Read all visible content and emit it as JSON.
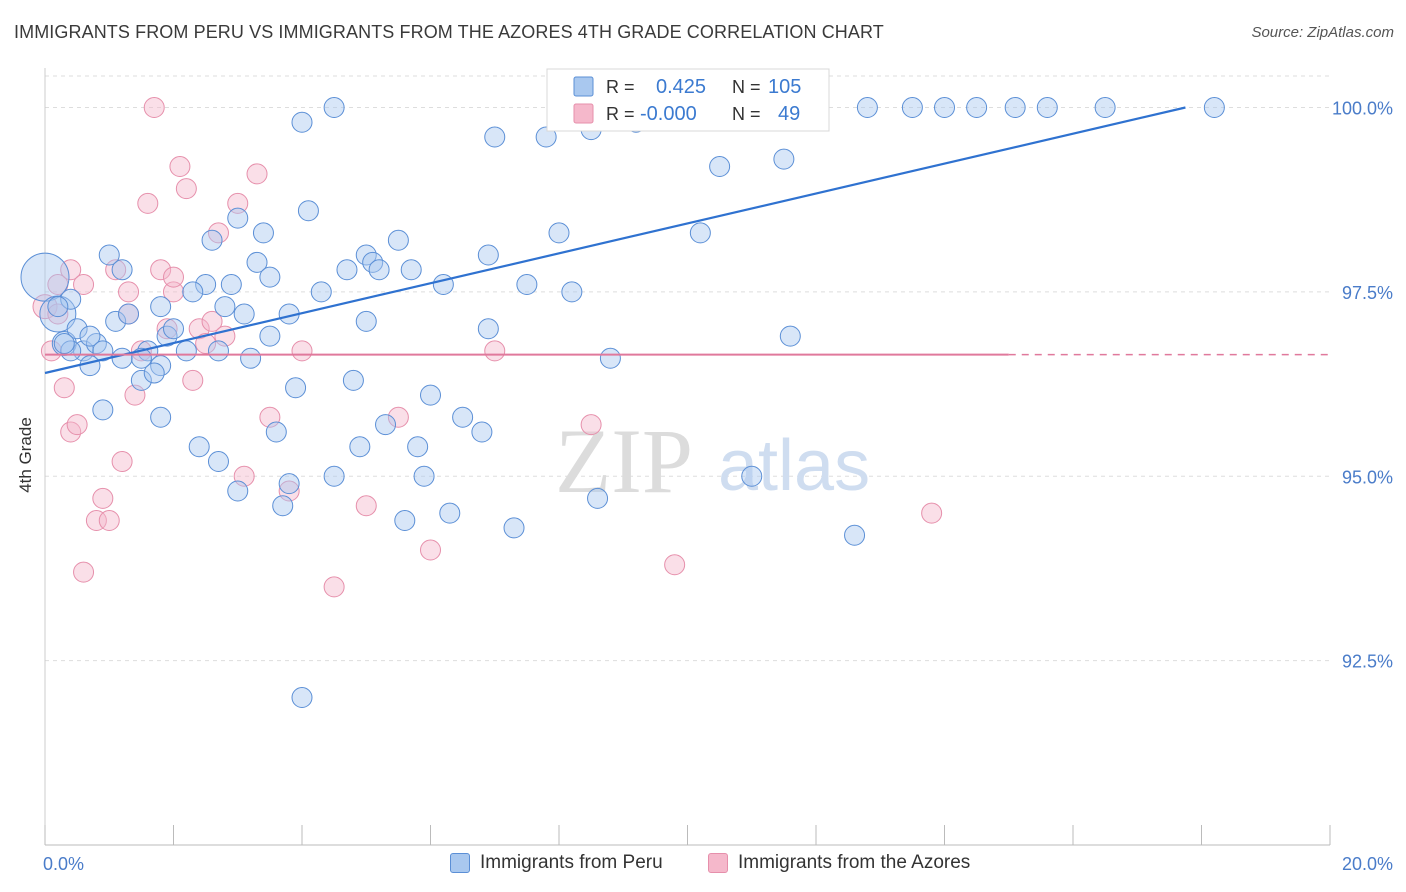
{
  "header": {
    "title": "IMMIGRANTS FROM PERU VS IMMIGRANTS FROM THE AZORES 4TH GRADE CORRELATION CHART",
    "source": "Source: ZipAtlas.com"
  },
  "watermark": {
    "zip": "ZIP",
    "atlas": "atlas"
  },
  "legend_stats": {
    "r_label": "R =",
    "n_label": "N =",
    "series": [
      {
        "r": "0.425",
        "n": "105"
      },
      {
        "r": "-0.000",
        "n": "49"
      }
    ]
  },
  "colors": {
    "peru_fill": "#a9c8ef",
    "peru_stroke": "#5b8fd6",
    "peru_line": "#2f72d0",
    "azores_fill": "#f5b8cb",
    "azores_stroke": "#e68fab",
    "azores_line": "#e0799c",
    "axis_label": "#4a7cc9",
    "grid": "#dddddd"
  },
  "chart_data": {
    "type": "scatter",
    "title": "IMMIGRANTS FROM PERU VS IMMIGRANTS FROM THE AZORES 4TH GRADE CORRELATION CHART",
    "xlabel": "",
    "ylabel": "4th Grade",
    "xlim": [
      0,
      20
    ],
    "ylim": [
      90.0,
      100.4
    ],
    "x_tick_labels": [
      "0.0%",
      "20.0%"
    ],
    "y_ticks": [
      92.5,
      95.0,
      97.5,
      100.0
    ],
    "y_tick_labels": [
      "92.5%",
      "95.0%",
      "97.5%",
      "100.0%"
    ],
    "legend_position": "top-center",
    "grid": true,
    "series": [
      {
        "name": "Immigrants from Peru",
        "trend": {
          "x": [
            0.0,
            17.75
          ],
          "y": [
            96.4,
            100.0
          ]
        },
        "points": [
          [
            0.0,
            97.7,
            24
          ],
          [
            0.2,
            97.2,
            18
          ],
          [
            0.3,
            96.8,
            12
          ],
          [
            0.4,
            97.4,
            10
          ],
          [
            0.5,
            97.0,
            10
          ],
          [
            0.6,
            96.7,
            10
          ],
          [
            0.7,
            96.5,
            10
          ],
          [
            0.8,
            96.8,
            10
          ],
          [
            0.9,
            95.9,
            10
          ],
          [
            1.0,
            98.0,
            10
          ],
          [
            1.1,
            97.1,
            10
          ],
          [
            1.2,
            97.8,
            10
          ],
          [
            1.3,
            97.2,
            10
          ],
          [
            1.5,
            96.3,
            10
          ],
          [
            1.6,
            96.7,
            10
          ],
          [
            1.8,
            97.3,
            10
          ],
          [
            1.8,
            96.5,
            10
          ],
          [
            1.8,
            95.8,
            10
          ],
          [
            1.9,
            96.9,
            10
          ],
          [
            2.0,
            97.0,
            10
          ],
          [
            2.2,
            96.7,
            10
          ],
          [
            2.4,
            95.4,
            10
          ],
          [
            2.5,
            97.6,
            10
          ],
          [
            2.6,
            98.2,
            10
          ],
          [
            2.7,
            95.2,
            10
          ],
          [
            2.8,
            97.3,
            10
          ],
          [
            2.9,
            97.6,
            10
          ],
          [
            3.0,
            98.5,
            10
          ],
          [
            3.0,
            94.8,
            10
          ],
          [
            3.1,
            97.2,
            10
          ],
          [
            3.2,
            96.6,
            10
          ],
          [
            3.3,
            97.9,
            10
          ],
          [
            3.4,
            98.3,
            10
          ],
          [
            3.5,
            97.7,
            10
          ],
          [
            3.5,
            96.9,
            10
          ],
          [
            3.6,
            95.6,
            10
          ],
          [
            3.7,
            94.6,
            10
          ],
          [
            3.8,
            97.2,
            10
          ],
          [
            3.9,
            96.2,
            10
          ],
          [
            4.0,
            99.8,
            10
          ],
          [
            4.1,
            98.6,
            10
          ],
          [
            4.3,
            97.5,
            10
          ],
          [
            4.5,
            100.0,
            10
          ],
          [
            4.5,
            95.0,
            10
          ],
          [
            4.7,
            97.8,
            10
          ],
          [
            4.8,
            96.3,
            10
          ],
          [
            4.9,
            95.4,
            10
          ],
          [
            5.0,
            98.0,
            10
          ],
          [
            5.0,
            97.1,
            10
          ],
          [
            5.1,
            97.9,
            10
          ],
          [
            5.2,
            97.8,
            10
          ],
          [
            5.3,
            95.7,
            10
          ],
          [
            5.5,
            98.2,
            10
          ],
          [
            5.6,
            94.4,
            10
          ],
          [
            5.7,
            97.8,
            10
          ],
          [
            5.8,
            95.4,
            10
          ],
          [
            5.9,
            95.0,
            10
          ],
          [
            6.0,
            96.1,
            10
          ],
          [
            6.2,
            97.6,
            10
          ],
          [
            6.3,
            94.5,
            10
          ],
          [
            6.5,
            95.8,
            10
          ],
          [
            6.8,
            95.6,
            10
          ],
          [
            6.9,
            98.0,
            10
          ],
          [
            7.0,
            99.6,
            10
          ],
          [
            7.3,
            94.3,
            10
          ],
          [
            7.5,
            97.6,
            10
          ],
          [
            7.8,
            99.6,
            10
          ],
          [
            8.0,
            98.3,
            10
          ],
          [
            8.2,
            97.5,
            10
          ],
          [
            8.5,
            99.7,
            10
          ],
          [
            8.6,
            100.0,
            10
          ],
          [
            8.6,
            94.7,
            10
          ],
          [
            8.8,
            96.6,
            10
          ],
          [
            9.2,
            99.8,
            10
          ],
          [
            9.5,
            100.0,
            10
          ],
          [
            9.8,
            100.0,
            10
          ],
          [
            10.0,
            100.0,
            10
          ],
          [
            10.2,
            98.3,
            10
          ],
          [
            10.5,
            99.2,
            10
          ],
          [
            11.0,
            95.0,
            10
          ],
          [
            11.5,
            99.3,
            10
          ],
          [
            11.6,
            96.9,
            10
          ],
          [
            12.0,
            100.0,
            10
          ],
          [
            12.6,
            94.2,
            10
          ],
          [
            12.8,
            100.0,
            10
          ],
          [
            13.5,
            100.0,
            10
          ],
          [
            14.0,
            100.0,
            10
          ],
          [
            14.5,
            100.0,
            10
          ],
          [
            15.1,
            100.0,
            10
          ],
          [
            15.6,
            100.0,
            10
          ],
          [
            16.5,
            100.0,
            10
          ],
          [
            18.2,
            100.0,
            10
          ],
          [
            4.0,
            92.0,
            10
          ],
          [
            2.3,
            97.5,
            10
          ],
          [
            1.7,
            96.4,
            10
          ],
          [
            1.5,
            96.6,
            10
          ],
          [
            1.2,
            96.6,
            10
          ],
          [
            0.4,
            96.7,
            10
          ],
          [
            0.7,
            96.9,
            10
          ],
          [
            0.9,
            96.7,
            10
          ],
          [
            0.2,
            97.3,
            10
          ],
          [
            0.3,
            96.8,
            10
          ],
          [
            3.8,
            94.9,
            10
          ],
          [
            2.7,
            96.7,
            10
          ],
          [
            6.9,
            97.0,
            10
          ]
        ]
      },
      {
        "name": "Immigrants from the Azores",
        "trend": {
          "x": [
            0.0,
            15.0
          ],
          "y": [
            96.65,
            96.65
          ],
          "dashed_to": 20.0
        },
        "points": [
          [
            0.0,
            97.3,
            12
          ],
          [
            0.1,
            96.7,
            10
          ],
          [
            0.2,
            97.6,
            10
          ],
          [
            0.3,
            96.2,
            10
          ],
          [
            0.4,
            95.6,
            10
          ],
          [
            0.5,
            95.7,
            10
          ],
          [
            0.6,
            93.7,
            10
          ],
          [
            0.8,
            94.4,
            10
          ],
          [
            0.9,
            94.7,
            10
          ],
          [
            1.0,
            94.4,
            10
          ],
          [
            1.1,
            97.8,
            10
          ],
          [
            1.2,
            95.2,
            10
          ],
          [
            1.3,
            97.5,
            10
          ],
          [
            1.4,
            96.1,
            10
          ],
          [
            1.5,
            96.7,
            10
          ],
          [
            1.6,
            98.7,
            10
          ],
          [
            1.7,
            100.0,
            10
          ],
          [
            1.8,
            97.8,
            10
          ],
          [
            1.9,
            97.0,
            10
          ],
          [
            2.0,
            97.5,
            10
          ],
          [
            2.1,
            99.2,
            10
          ],
          [
            2.2,
            98.9,
            10
          ],
          [
            2.3,
            96.3,
            10
          ],
          [
            2.4,
            97.0,
            10
          ],
          [
            2.5,
            96.8,
            10
          ],
          [
            2.6,
            97.1,
            10
          ],
          [
            2.7,
            98.3,
            10
          ],
          [
            2.8,
            96.9,
            10
          ],
          [
            3.0,
            98.7,
            10
          ],
          [
            3.1,
            95.0,
            10
          ],
          [
            3.3,
            99.1,
            10
          ],
          [
            3.5,
            95.8,
            10
          ],
          [
            3.8,
            94.8,
            10
          ],
          [
            4.0,
            96.7,
            10
          ],
          [
            4.5,
            93.5,
            10
          ],
          [
            5.0,
            94.6,
            10
          ],
          [
            5.5,
            95.8,
            10
          ],
          [
            6.0,
            94.0,
            10
          ],
          [
            7.0,
            96.7,
            10
          ],
          [
            8.5,
            95.7,
            10
          ],
          [
            9.8,
            93.8,
            10
          ],
          [
            10.3,
            100.0,
            10
          ],
          [
            11.5,
            100.0,
            10
          ],
          [
            13.8,
            94.5,
            10
          ],
          [
            0.2,
            97.2,
            10
          ],
          [
            0.4,
            97.8,
            10
          ],
          [
            0.6,
            97.6,
            10
          ],
          [
            1.3,
            97.2,
            10
          ],
          [
            2.0,
            97.7,
            10
          ]
        ]
      }
    ]
  },
  "legend_bottom": [
    {
      "label": "Immigrants from Peru"
    },
    {
      "label": "Immigrants from the Azores"
    }
  ]
}
